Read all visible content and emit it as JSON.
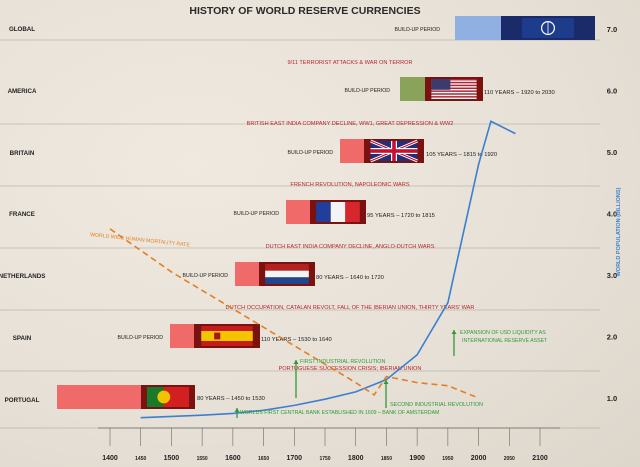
{
  "chart_data": {
    "type": "line",
    "title": "HISTORY OF WORLD RESERVE CURRENCIES",
    "x_ticks": [
      "1400",
      "1450",
      "1500",
      "1550",
      "1600",
      "1650",
      "1700",
      "1750",
      "1800",
      "1850",
      "1900",
      "1950",
      "2000",
      "2050",
      "2100"
    ],
    "y_ticks": [
      "1.0",
      "2.0",
      "3.0",
      "4.0",
      "5.0",
      "6.0",
      "7.0"
    ],
    "y_axis_label": "WORLD POPULATION (BILLIONS)",
    "xlim": [
      1400,
      2100
    ],
    "ylim": [
      0.5,
      7.5
    ],
    "rows": [
      {
        "name": "GLOBAL",
        "buildup_label": "BUILD-UP PERIOD",
        "period_label": "",
        "event_label": "9/11 TERRORIST ATTACKS & WAR ON TERROR",
        "flag": "un"
      },
      {
        "name": "AMERICA",
        "buildup_label": "BUILD-UP PERIOD",
        "period_label": "110 YEARS – 1920 to 2030",
        "event_label": "BRITISH EAST INDIA COMPANY DECLINE, WW1, GREAT DEPRESSION & WW2",
        "flag": "us"
      },
      {
        "name": "BRITAIN",
        "buildup_label": "BUILD-UP PERIOD",
        "period_label": "105 YEARS – 1815 to 1920",
        "event_label": "FRENCH REVOLUTION, NAPOLEONIC WARS",
        "flag": "uk"
      },
      {
        "name": "FRANCE",
        "buildup_label": "BUILD-UP PERIOD",
        "period_label": "95 YEARS – 1720 to 1815",
        "event_label": "DUTCH EAST INDIA COMPANY DECLINE, ANGLO-DUTCH WARS",
        "flag": "fr"
      },
      {
        "name": "NETHERLANDS",
        "buildup_label": "BUILD-UP PERIOD",
        "period_label": "80 YEARS – 1640 to 1720",
        "event_label": "DUTCH OCCUPATION, CATALAN REVOLT, FALL OF THE IBERIAN UNION, THIRTY YEARS' WAR",
        "flag": "nl"
      },
      {
        "name": "SPAIN",
        "buildup_label": "BUILD-UP PERIOD",
        "period_label": "110 YEARS – 1530 to 1640",
        "event_label": "PORTUGUESE SUCCESSION CRISIS; IBERIAN UNION",
        "flag": "es"
      },
      {
        "name": "PORTUGAL",
        "buildup_label": "",
        "period_label": "80 YEARS – 1450 to 1530",
        "event_label": "",
        "flag": "pt"
      }
    ],
    "series": [
      {
        "name": "WORLD POPULATION",
        "color": "#3c7fd0",
        "style": "solid",
        "x": [
          1450,
          1500,
          1550,
          1600,
          1650,
          1700,
          1750,
          1800,
          1850,
          1900,
          1950,
          1960,
          1980,
          2000,
          2020,
          2060
        ],
        "y": [
          0.68,
          0.7,
          0.72,
          0.75,
          0.8,
          0.88,
          0.98,
          1.1,
          1.3,
          1.7,
          2.55,
          3.0,
          3.9,
          4.8,
          5.5,
          5.3
        ]
      },
      {
        "name": "WORLD WIDE HUMAN MORTALITY RATE",
        "color": "#e67e22",
        "style": "dashed",
        "x": [
          1400,
          1450,
          1500,
          1550,
          1600,
          1650,
          1700,
          1750,
          1800,
          1830,
          1850,
          1900,
          1950,
          2000
        ],
        "y": [
          3.75,
          3.4,
          3.05,
          2.75,
          2.45,
          2.15,
          1.85,
          1.55,
          1.25,
          1.05,
          1.35,
          1.25,
          1.2,
          1.0
        ]
      }
    ],
    "annotations": [
      {
        "label": "FIRST INDUSTRIAL REVOLUTION",
        "x": 1700
      },
      {
        "label": "SECOND INDUSTRIAL REVOLUTION",
        "x": 1850
      },
      {
        "label": "WORLDS FIRST CENTRAL BANK ESTABLISHED IN 1609 – BANK OF AMSTERDAM",
        "x": 1609
      },
      {
        "label": "EXPANSION OF USD LIQUIDITY AS",
        "label2": "INTERNATIONAL RESERVE ASSET",
        "x": 1960
      }
    ],
    "mortality_label": "WORLD WIDE HUMAN MORTALITY RATE",
    "grid": true,
    "legend": "none"
  }
}
